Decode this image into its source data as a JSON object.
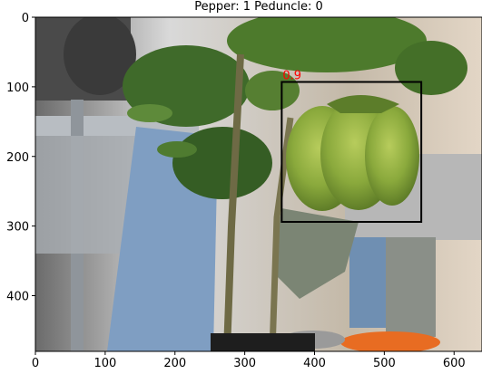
{
  "chart_data": {
    "type": "image-detection-plot",
    "title": "Pepper: 1 Peduncle: 0",
    "xlim": [
      0,
      640
    ],
    "ylim": [
      480,
      0
    ],
    "x_ticks": [
      0,
      100,
      200,
      300,
      400,
      500,
      600
    ],
    "y_ticks": [
      0,
      100,
      200,
      300,
      400
    ],
    "detections": [
      {
        "label": "0.9",
        "x_min": 353,
        "y_min": 93,
        "x_max": 553,
        "y_max": 294,
        "box_color": "#000000",
        "label_color": "#ff0000"
      }
    ]
  },
  "colors": {
    "pepper": "#86a63a",
    "leaf": "#3f6a2a",
    "jeans": "#7f9ec2",
    "metal": "#9aa0a6",
    "background": "#cfcfcf"
  }
}
